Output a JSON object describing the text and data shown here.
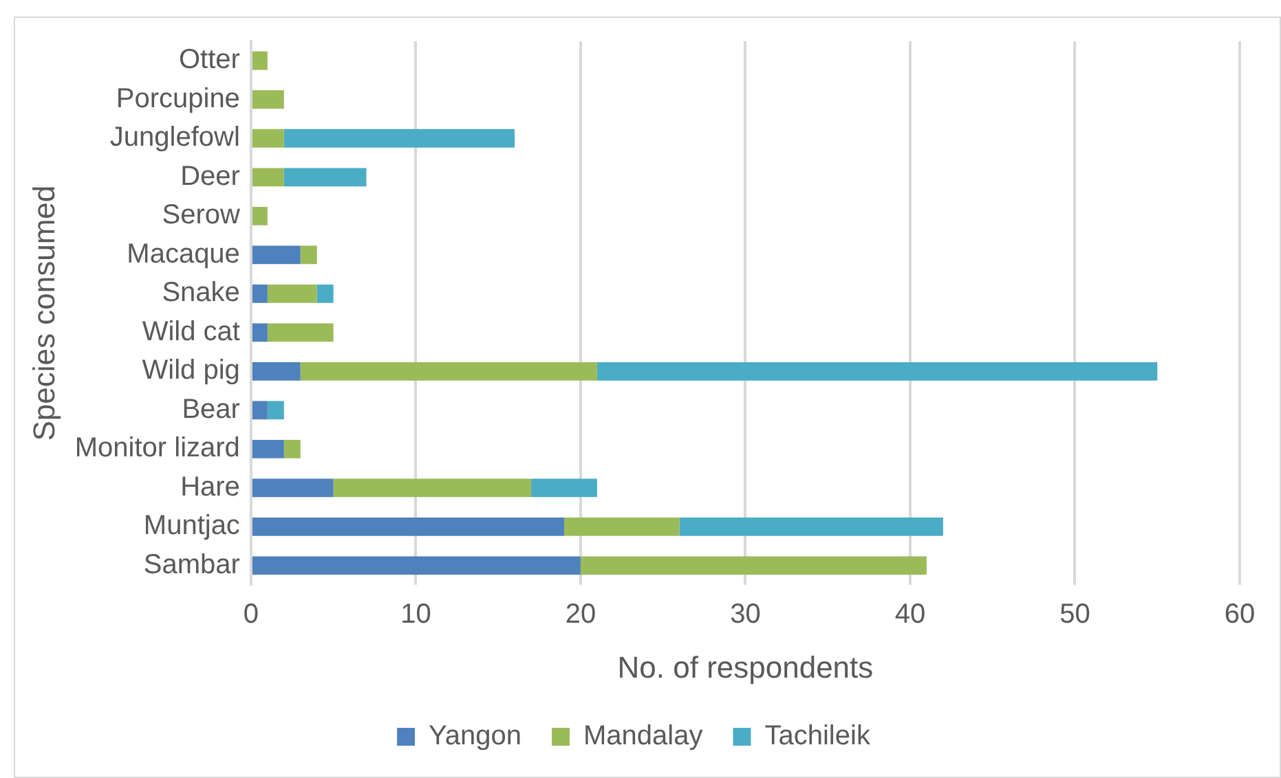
{
  "chart_data": {
    "type": "bar",
    "orientation": "horizontal",
    "stacked": true,
    "xlabel": "No. of respondents",
    "ylabel": "Species consumed",
    "categories": [
      "Otter",
      "Porcupine",
      "Junglefowl",
      "Deer",
      "Serow",
      "Macaque",
      "Snake",
      "Wild cat",
      "Wild pig",
      "Bear",
      "Monitor lizard",
      "Hare",
      "Muntjac",
      "Sambar"
    ],
    "series": [
      {
        "name": "Yangon",
        "color": "#4f81bd",
        "values": [
          0,
          0,
          0,
          0,
          0,
          3,
          1,
          1,
          3,
          1,
          2,
          5,
          19,
          20
        ]
      },
      {
        "name": "Mandalay",
        "color": "#9bbb59",
        "values": [
          1,
          2,
          2,
          2,
          1,
          1,
          3,
          4,
          18,
          0,
          1,
          12,
          7,
          21
        ]
      },
      {
        "name": "Tachileik",
        "color": "#4bacc6",
        "values": [
          0,
          0,
          14,
          5,
          0,
          0,
          1,
          0,
          34,
          1,
          0,
          4,
          16,
          0
        ]
      }
    ],
    "xlim": [
      0,
      60
    ],
    "xticks": [
      0,
      10,
      20,
      30,
      40,
      50,
      60
    ],
    "grid": "x",
    "legend": "bottom"
  }
}
